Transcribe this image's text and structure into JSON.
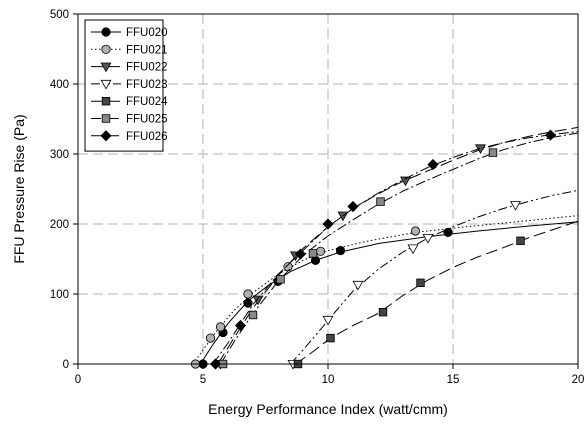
{
  "chart_data": {
    "type": "line",
    "xlabel": "Energy Performance Index (watt/cmm)",
    "ylabel": "FFU Pressure Rise (Pa)",
    "xlim": [
      0,
      20
    ],
    "ylim": [
      0,
      500
    ],
    "x_ticks": [
      0,
      5,
      10,
      15,
      20
    ],
    "y_ticks": [
      0,
      100,
      200,
      300,
      400,
      500
    ],
    "x_tick_labels": [
      "0",
      "5",
      "10",
      "15",
      "20"
    ],
    "y_tick_labels": [
      "0",
      "100",
      "200",
      "300",
      "400",
      "500"
    ],
    "grid": "dashed, major ticks",
    "legend_position": "top-left",
    "series": [
      {
        "name": "FFU020",
        "marker": "filled-circle",
        "marker_color": "#000000",
        "line_style": "solid",
        "points": [
          [
            5.0,
            0
          ],
          [
            5.8,
            45
          ],
          [
            6.8,
            87
          ],
          [
            8.0,
            118
          ],
          [
            9.5,
            148
          ],
          [
            10.5,
            162
          ],
          [
            14.8,
            188
          ]
        ],
        "curve": [
          [
            4.9,
            0
          ],
          [
            5.4,
            28
          ],
          [
            6.0,
            58
          ],
          [
            6.8,
            90
          ],
          [
            7.6,
            112
          ],
          [
            8.5,
            132
          ],
          [
            9.5,
            148
          ],
          [
            10.5,
            160
          ],
          [
            12.0,
            172
          ],
          [
            14.0,
            182
          ],
          [
            16.0,
            190
          ],
          [
            18.0,
            197
          ],
          [
            20.0,
            203
          ]
        ]
      },
      {
        "name": "FFU021",
        "marker": "gray-circle",
        "marker_color": "#b0b0b0",
        "line_style": "dotted",
        "points": [
          [
            4.7,
            0
          ],
          [
            5.3,
            37
          ],
          [
            5.7,
            53
          ],
          [
            6.8,
            100
          ],
          [
            8.4,
            139
          ],
          [
            9.7,
            161
          ],
          [
            13.5,
            190
          ]
        ],
        "curve": [
          [
            4.6,
            0
          ],
          [
            5.0,
            20
          ],
          [
            5.5,
            45
          ],
          [
            6.2,
            75
          ],
          [
            7.0,
            102
          ],
          [
            8.0,
            128
          ],
          [
            9.0,
            148
          ],
          [
            10.0,
            162
          ],
          [
            11.5,
            175
          ],
          [
            13.5,
            188
          ],
          [
            15.5,
            196
          ],
          [
            17.5,
            203
          ],
          [
            20.0,
            212
          ]
        ]
      },
      {
        "name": "FFU022",
        "marker": "filled-triangle-down",
        "marker_color": "#555555",
        "line_style": "long-dash",
        "points": [
          [
            5.7,
            0
          ],
          [
            7.2,
            92
          ],
          [
            8.7,
            155
          ],
          [
            10.6,
            212
          ],
          [
            13.1,
            262
          ],
          [
            16.1,
            308
          ]
        ],
        "curve": [
          [
            5.6,
            0
          ],
          [
            6.2,
            35
          ],
          [
            7.0,
            80
          ],
          [
            8.0,
            126
          ],
          [
            9.0,
            165
          ],
          [
            10.0,
            196
          ],
          [
            11.0,
            222
          ],
          [
            12.0,
            243
          ],
          [
            13.0,
            261
          ],
          [
            14.0,
            276
          ],
          [
            15.0,
            291
          ],
          [
            16.0,
            305
          ],
          [
            17.0,
            316
          ],
          [
            18.0,
            325
          ],
          [
            19.0,
            332
          ],
          [
            20.0,
            338
          ]
        ]
      },
      {
        "name": "FFU023",
        "marker": "open-triangle-down",
        "marker_color": "#ffffff",
        "line_style": "dash-dot-dot",
        "points": [
          [
            8.6,
            0
          ],
          [
            10.0,
            63
          ],
          [
            11.2,
            113
          ],
          [
            13.4,
            165
          ],
          [
            14.0,
            180
          ],
          [
            17.5,
            227
          ]
        ],
        "curve": [
          [
            8.5,
            0
          ],
          [
            9.0,
            20
          ],
          [
            9.6,
            45
          ],
          [
            10.3,
            75
          ],
          [
            11.0,
            104
          ],
          [
            12.0,
            135
          ],
          [
            13.0,
            160
          ],
          [
            14.0,
            180
          ],
          [
            15.0,
            196
          ],
          [
            16.0,
            210
          ],
          [
            17.0,
            222
          ],
          [
            18.0,
            232
          ],
          [
            19.0,
            241
          ],
          [
            20.0,
            248
          ]
        ]
      },
      {
        "name": "FFU024",
        "marker": "filled-square",
        "marker_color": "#444444",
        "line_style": "long-dash",
        "points": [
          [
            8.8,
            0
          ],
          [
            10.1,
            37
          ],
          [
            12.2,
            74
          ],
          [
            13.7,
            116
          ],
          [
            17.7,
            176
          ]
        ],
        "curve": [
          [
            8.7,
            0
          ],
          [
            9.3,
            15
          ],
          [
            10.1,
            37
          ],
          [
            11.0,
            55
          ],
          [
            12.0,
            72
          ],
          [
            13.0,
            98
          ],
          [
            14.0,
            120
          ],
          [
            15.0,
            138
          ],
          [
            16.0,
            153
          ],
          [
            17.0,
            166
          ],
          [
            18.0,
            180
          ],
          [
            19.0,
            192
          ],
          [
            20.0,
            204
          ]
        ]
      },
      {
        "name": "FFU025",
        "marker": "gray-square",
        "marker_color": "#888888",
        "line_style": "dash-dot",
        "points": [
          [
            5.8,
            0
          ],
          [
            7.0,
            70
          ],
          [
            8.1,
            121
          ],
          [
            9.4,
            158
          ],
          [
            12.1,
            232
          ],
          [
            16.6,
            302
          ]
        ],
        "curve": [
          [
            5.7,
            0
          ],
          [
            6.3,
            35
          ],
          [
            7.0,
            72
          ],
          [
            8.0,
            118
          ],
          [
            9.0,
            155
          ],
          [
            10.0,
            183
          ],
          [
            11.0,
            206
          ],
          [
            12.0,
            228
          ],
          [
            13.0,
            247
          ],
          [
            14.0,
            263
          ],
          [
            15.0,
            278
          ],
          [
            16.0,
            293
          ],
          [
            17.0,
            306
          ],
          [
            18.0,
            316
          ],
          [
            19.0,
            324
          ],
          [
            20.0,
            330
          ]
        ]
      },
      {
        "name": "FFU026",
        "marker": "filled-diamond",
        "marker_color": "#000000",
        "line_style": "dash-dot",
        "points": [
          [
            5.5,
            0
          ],
          [
            6.5,
            55
          ],
          [
            8.9,
            157
          ],
          [
            10.0,
            200
          ],
          [
            11.0,
            225
          ],
          [
            14.2,
            285
          ],
          [
            18.9,
            327
          ]
        ],
        "curve": [
          [
            5.4,
            0
          ],
          [
            6.0,
            30
          ],
          [
            7.0,
            85
          ],
          [
            8.0,
            128
          ],
          [
            9.0,
            162
          ],
          [
            10.0,
            196
          ],
          [
            11.0,
            222
          ],
          [
            12.0,
            244
          ],
          [
            13.0,
            263
          ],
          [
            14.0,
            281
          ],
          [
            15.0,
            295
          ],
          [
            16.0,
            307
          ],
          [
            17.0,
            316
          ],
          [
            18.0,
            323
          ],
          [
            19.0,
            328
          ],
          [
            20.0,
            332
          ]
        ]
      }
    ]
  }
}
